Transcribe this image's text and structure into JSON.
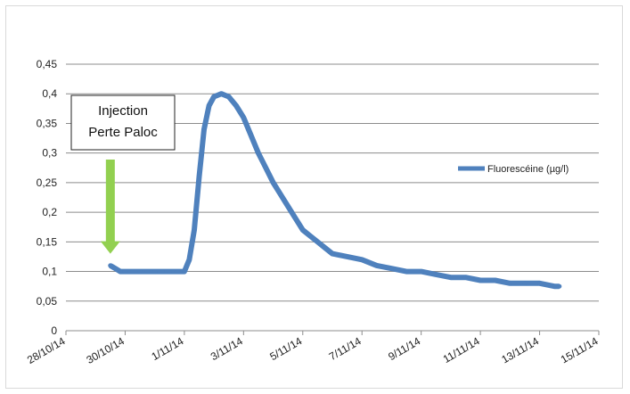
{
  "chart_data": {
    "type": "line",
    "title": "",
    "xlabel": "",
    "ylabel": "",
    "xlim": [
      "28/10/14",
      "15/11/14"
    ],
    "ylim": [
      0,
      0.45
    ],
    "yticks": [
      "0",
      "0,05",
      "0,1",
      "0,15",
      "0,2",
      "0,25",
      "0,3",
      "0,35",
      "0,4",
      "0,45"
    ],
    "xticks": [
      "28/10/14",
      "30/10/14",
      "1/11/14",
      "3/11/14",
      "5/11/14",
      "7/11/14",
      "9/11/14",
      "11/11/14",
      "13/11/14",
      "15/11/14"
    ],
    "grid": "horizontal",
    "legend_position": "right",
    "series": [
      {
        "name": "Fluorescéine (µg/l)",
        "color": "#4f81bd",
        "points": [
          [
            "29/10/14 12:00",
            0.11
          ],
          [
            "29/10/14 16:00",
            0.105
          ],
          [
            "29/10/14 20:00",
            0.1
          ],
          [
            "30/10/14 00:00",
            0.1
          ],
          [
            "30/10/14 06:00",
            0.1
          ],
          [
            "30/10/14 12:00",
            0.1
          ],
          [
            "30/10/14 18:00",
            0.1
          ],
          [
            "31/10/14 00:00",
            0.1
          ],
          [
            "31/10/14 06:00",
            0.1
          ],
          [
            "31/10/14 12:00",
            0.1
          ],
          [
            "31/10/14 18:00",
            0.1
          ],
          [
            "1/11/14 00:00",
            0.1
          ],
          [
            "1/11/14 04:00",
            0.12
          ],
          [
            "1/11/14 08:00",
            0.17
          ],
          [
            "1/11/14 12:00",
            0.26
          ],
          [
            "1/11/14 16:00",
            0.34
          ],
          [
            "1/11/14 20:00",
            0.38
          ],
          [
            "2/11/14 00:00",
            0.395
          ],
          [
            "2/11/14 06:00",
            0.4
          ],
          [
            "2/11/14 12:00",
            0.395
          ],
          [
            "2/11/14 18:00",
            0.38
          ],
          [
            "3/11/14 00:00",
            0.36
          ],
          [
            "3/11/14 06:00",
            0.33
          ],
          [
            "3/11/14 12:00",
            0.3
          ],
          [
            "3/11/14 18:00",
            0.275
          ],
          [
            "4/11/14 00:00",
            0.25
          ],
          [
            "4/11/14 06:00",
            0.23
          ],
          [
            "4/11/14 12:00",
            0.21
          ],
          [
            "4/11/14 18:00",
            0.19
          ],
          [
            "5/11/14 00:00",
            0.17
          ],
          [
            "5/11/14 06:00",
            0.16
          ],
          [
            "5/11/14 12:00",
            0.15
          ],
          [
            "5/11/14 18:00",
            0.14
          ],
          [
            "6/11/14 00:00",
            0.13
          ],
          [
            "6/11/14 12:00",
            0.125
          ],
          [
            "7/11/14 00:00",
            0.12
          ],
          [
            "7/11/14 12:00",
            0.11
          ],
          [
            "8/11/14 00:00",
            0.105
          ],
          [
            "8/11/14 12:00",
            0.1
          ],
          [
            "9/11/14 00:00",
            0.1
          ],
          [
            "9/11/14 12:00",
            0.095
          ],
          [
            "10/11/14 00:00",
            0.09
          ],
          [
            "10/11/14 12:00",
            0.09
          ],
          [
            "11/11/14 00:00",
            0.085
          ],
          [
            "11/11/14 12:00",
            0.085
          ],
          [
            "12/11/14 00:00",
            0.08
          ],
          [
            "12/11/14 12:00",
            0.08
          ],
          [
            "13/11/14 00:00",
            0.08
          ],
          [
            "13/11/14 12:00",
            0.075
          ],
          [
            "13/11/14 16:00",
            0.075
          ]
        ]
      }
    ],
    "annotations": [
      {
        "text_lines": [
          "Injection",
          "Perte Paloc"
        ],
        "arrow_color": "#92d050",
        "arrow_points_to": [
          "29/10/14 12:00",
          0.13
        ]
      }
    ]
  }
}
